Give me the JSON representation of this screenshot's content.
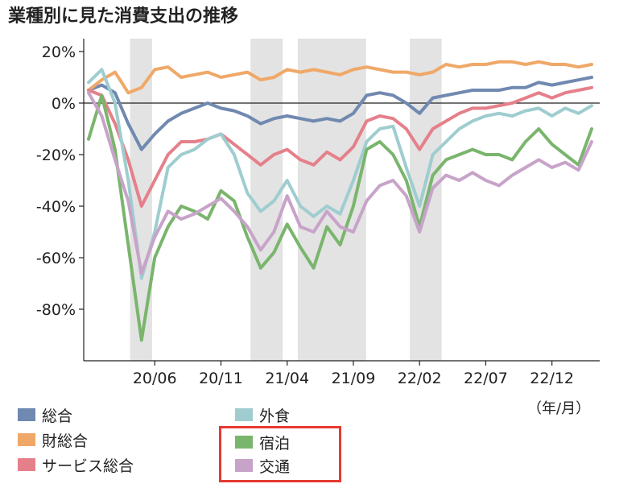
{
  "title": "業種別に見た消費支出の推移",
  "unit_label": "（年/月）",
  "chart_data": {
    "type": "line",
    "ylim": [
      -100,
      25
    ],
    "yticks": [
      20,
      0,
      -20,
      -40,
      -60,
      -80
    ],
    "ytick_labels": [
      "20%",
      "0%",
      "-20%",
      "-40%",
      "-60%",
      "-80%"
    ],
    "x_start": "2020-01",
    "x_end": "2023-03",
    "xtick_months": [
      "2020-06",
      "2020-11",
      "2021-04",
      "2021-09",
      "2022-02",
      "2022-07",
      "2022-12"
    ],
    "xtick_labels": [
      "20/06",
      "20/11",
      "21/04",
      "21/09",
      "22/02",
      "22/07",
      "22/12"
    ],
    "shaded_periods": [
      [
        "2020-04-05",
        "2020-05-25"
      ],
      [
        "2021-01-08",
        "2021-03-21"
      ],
      [
        "2021-04-25",
        "2021-09-30"
      ],
      [
        "2022-01-09",
        "2022-03-21"
      ]
    ],
    "grid": false,
    "legend_position": "bottom",
    "series": [
      {
        "name": "総合",
        "color": "#7089b0",
        "points": [
          [
            "2020-01",
            5
          ],
          [
            "2020-02",
            7
          ],
          [
            "2020-03",
            4
          ],
          [
            "2020-04",
            -8
          ],
          [
            "2020-05",
            -18
          ],
          [
            "2020-06",
            -12
          ],
          [
            "2020-07",
            -7
          ],
          [
            "2020-08",
            -4
          ],
          [
            "2020-09",
            -2
          ],
          [
            "2020-10",
            0
          ],
          [
            "2020-11",
            -2
          ],
          [
            "2020-12",
            -3
          ],
          [
            "2021-01",
            -5
          ],
          [
            "2021-02",
            -8
          ],
          [
            "2021-03",
            -6
          ],
          [
            "2021-04",
            -5
          ],
          [
            "2021-05",
            -6
          ],
          [
            "2021-06",
            -7
          ],
          [
            "2021-07",
            -6
          ],
          [
            "2021-08",
            -7
          ],
          [
            "2021-09",
            -4
          ],
          [
            "2021-10",
            3
          ],
          [
            "2021-11",
            4
          ],
          [
            "2021-12",
            3
          ],
          [
            "2022-01",
            0
          ],
          [
            "2022-02",
            -4
          ],
          [
            "2022-03",
            2
          ],
          [
            "2022-04",
            3
          ],
          [
            "2022-05",
            4
          ],
          [
            "2022-06",
            5
          ],
          [
            "2022-07",
            5
          ],
          [
            "2022-08",
            5
          ],
          [
            "2022-09",
            6
          ],
          [
            "2022-10",
            6
          ],
          [
            "2022-11",
            8
          ],
          [
            "2022-12",
            7
          ],
          [
            "2023-01",
            8
          ],
          [
            "2023-02",
            9
          ],
          [
            "2023-03",
            10
          ]
        ]
      },
      {
        "name": "財総合",
        "color": "#f0a868",
        "points": [
          [
            "2020-01",
            5
          ],
          [
            "2020-02",
            9
          ],
          [
            "2020-03",
            12
          ],
          [
            "2020-04",
            4
          ],
          [
            "2020-05",
            6
          ],
          [
            "2020-06",
            13
          ],
          [
            "2020-07",
            14
          ],
          [
            "2020-08",
            10
          ],
          [
            "2020-09",
            11
          ],
          [
            "2020-10",
            12
          ],
          [
            "2020-11",
            10
          ],
          [
            "2020-12",
            11
          ],
          [
            "2021-01",
            12
          ],
          [
            "2021-02",
            9
          ],
          [
            "2021-03",
            10
          ],
          [
            "2021-04",
            13
          ],
          [
            "2021-05",
            12
          ],
          [
            "2021-06",
            13
          ],
          [
            "2021-07",
            12
          ],
          [
            "2021-08",
            11
          ],
          [
            "2021-09",
            13
          ],
          [
            "2021-10",
            14
          ],
          [
            "2021-11",
            13
          ],
          [
            "2021-12",
            12
          ],
          [
            "2022-01",
            12
          ],
          [
            "2022-02",
            11
          ],
          [
            "2022-03",
            12
          ],
          [
            "2022-04",
            15
          ],
          [
            "2022-05",
            14
          ],
          [
            "2022-06",
            15
          ],
          [
            "2022-07",
            15
          ],
          [
            "2022-08",
            16
          ],
          [
            "2022-09",
            16
          ],
          [
            "2022-10",
            15
          ],
          [
            "2022-11",
            16
          ],
          [
            "2022-12",
            15
          ],
          [
            "2023-01",
            15
          ],
          [
            "2023-02",
            14
          ],
          [
            "2023-03",
            15
          ]
        ]
      },
      {
        "name": "サービス総合",
        "color": "#e5808a",
        "points": [
          [
            "2020-01",
            5
          ],
          [
            "2020-02",
            3
          ],
          [
            "2020-03",
            -8
          ],
          [
            "2020-04",
            -22
          ],
          [
            "2020-05",
            -40
          ],
          [
            "2020-06",
            -30
          ],
          [
            "2020-07",
            -20
          ],
          [
            "2020-08",
            -15
          ],
          [
            "2020-09",
            -15
          ],
          [
            "2020-10",
            -14
          ],
          [
            "2020-11",
            -12
          ],
          [
            "2020-12",
            -16
          ],
          [
            "2021-01",
            -20
          ],
          [
            "2021-02",
            -24
          ],
          [
            "2021-03",
            -20
          ],
          [
            "2021-04",
            -18
          ],
          [
            "2021-05",
            -22
          ],
          [
            "2021-06",
            -24
          ],
          [
            "2021-07",
            -19
          ],
          [
            "2021-08",
            -22
          ],
          [
            "2021-09",
            -17
          ],
          [
            "2021-10",
            -7
          ],
          [
            "2021-11",
            -5
          ],
          [
            "2021-12",
            -6
          ],
          [
            "2022-01",
            -10
          ],
          [
            "2022-02",
            -18
          ],
          [
            "2022-03",
            -10
          ],
          [
            "2022-04",
            -7
          ],
          [
            "2022-05",
            -4
          ],
          [
            "2022-06",
            -2
          ],
          [
            "2022-07",
            -2
          ],
          [
            "2022-08",
            -1
          ],
          [
            "2022-09",
            0
          ],
          [
            "2022-10",
            2
          ],
          [
            "2022-11",
            4
          ],
          [
            "2022-12",
            2
          ],
          [
            "2023-01",
            4
          ],
          [
            "2023-02",
            5
          ],
          [
            "2023-03",
            6
          ]
        ]
      },
      {
        "name": "外食",
        "color": "#9fcdcf",
        "points": [
          [
            "2020-01",
            8
          ],
          [
            "2020-02",
            13
          ],
          [
            "2020-03",
            0
          ],
          [
            "2020-04",
            -30
          ],
          [
            "2020-05",
            -68
          ],
          [
            "2020-06",
            -50
          ],
          [
            "2020-07",
            -25
          ],
          [
            "2020-08",
            -20
          ],
          [
            "2020-09",
            -18
          ],
          [
            "2020-10",
            -14
          ],
          [
            "2020-11",
            -12
          ],
          [
            "2020-12",
            -20
          ],
          [
            "2021-01",
            -35
          ],
          [
            "2021-02",
            -42
          ],
          [
            "2021-03",
            -38
          ],
          [
            "2021-04",
            -30
          ],
          [
            "2021-05",
            -40
          ],
          [
            "2021-06",
            -44
          ],
          [
            "2021-07",
            -40
          ],
          [
            "2021-08",
            -43
          ],
          [
            "2021-09",
            -30
          ],
          [
            "2021-10",
            -15
          ],
          [
            "2021-11",
            -10
          ],
          [
            "2021-12",
            -9
          ],
          [
            "2022-01",
            -25
          ],
          [
            "2022-02",
            -40
          ],
          [
            "2022-03",
            -20
          ],
          [
            "2022-04",
            -15
          ],
          [
            "2022-05",
            -10
          ],
          [
            "2022-06",
            -7
          ],
          [
            "2022-07",
            -5
          ],
          [
            "2022-08",
            -4
          ],
          [
            "2022-09",
            -5
          ],
          [
            "2022-10",
            -3
          ],
          [
            "2022-11",
            -2
          ],
          [
            "2022-12",
            -5
          ],
          [
            "2023-01",
            -2
          ],
          [
            "2023-02",
            -4
          ],
          [
            "2023-03",
            -1
          ]
        ]
      },
      {
        "name": "宿泊",
        "color": "#7ab56d",
        "points": [
          [
            "2020-01",
            -14
          ],
          [
            "2020-02",
            3
          ],
          [
            "2020-03",
            -18
          ],
          [
            "2020-04",
            -55
          ],
          [
            "2020-05",
            -92
          ],
          [
            "2020-06",
            -60
          ],
          [
            "2020-07",
            -48
          ],
          [
            "2020-08",
            -40
          ],
          [
            "2020-09",
            -42
          ],
          [
            "2020-10",
            -45
          ],
          [
            "2020-11",
            -34
          ],
          [
            "2020-12",
            -38
          ],
          [
            "2021-01",
            -52
          ],
          [
            "2021-02",
            -64
          ],
          [
            "2021-03",
            -58
          ],
          [
            "2021-04",
            -47
          ],
          [
            "2021-05",
            -56
          ],
          [
            "2021-06",
            -64
          ],
          [
            "2021-07",
            -48
          ],
          [
            "2021-08",
            -55
          ],
          [
            "2021-09",
            -40
          ],
          [
            "2021-10",
            -18
          ],
          [
            "2021-11",
            -15
          ],
          [
            "2021-12",
            -20
          ],
          [
            "2022-01",
            -30
          ],
          [
            "2022-02",
            -48
          ],
          [
            "2022-03",
            -28
          ],
          [
            "2022-04",
            -22
          ],
          [
            "2022-05",
            -20
          ],
          [
            "2022-06",
            -18
          ],
          [
            "2022-07",
            -20
          ],
          [
            "2022-08",
            -20
          ],
          [
            "2022-09",
            -22
          ],
          [
            "2022-10",
            -15
          ],
          [
            "2022-11",
            -10
          ],
          [
            "2022-12",
            -16
          ],
          [
            "2023-01",
            -20
          ],
          [
            "2023-02",
            -24
          ],
          [
            "2023-03",
            -10
          ]
        ]
      },
      {
        "name": "交通",
        "color": "#c8a3c9",
        "points": [
          [
            "2020-01",
            4
          ],
          [
            "2020-02",
            -5
          ],
          [
            "2020-03",
            -22
          ],
          [
            "2020-04",
            -38
          ],
          [
            "2020-05",
            -66
          ],
          [
            "2020-06",
            -52
          ],
          [
            "2020-07",
            -42
          ],
          [
            "2020-08",
            -45
          ],
          [
            "2020-09",
            -43
          ],
          [
            "2020-10",
            -40
          ],
          [
            "2020-11",
            -37
          ],
          [
            "2020-12",
            -42
          ],
          [
            "2021-01",
            -48
          ],
          [
            "2021-02",
            -57
          ],
          [
            "2021-03",
            -50
          ],
          [
            "2021-04",
            -36
          ],
          [
            "2021-05",
            -48
          ],
          [
            "2021-06",
            -50
          ],
          [
            "2021-07",
            -42
          ],
          [
            "2021-08",
            -48
          ],
          [
            "2021-09",
            -50
          ],
          [
            "2021-10",
            -38
          ],
          [
            "2021-11",
            -32
          ],
          [
            "2021-12",
            -30
          ],
          [
            "2022-01",
            -36
          ],
          [
            "2022-02",
            -50
          ],
          [
            "2022-03",
            -33
          ],
          [
            "2022-04",
            -28
          ],
          [
            "2022-05",
            -30
          ],
          [
            "2022-06",
            -27
          ],
          [
            "2022-07",
            -30
          ],
          [
            "2022-08",
            -32
          ],
          [
            "2022-09",
            -28
          ],
          [
            "2022-10",
            -25
          ],
          [
            "2022-11",
            -22
          ],
          [
            "2022-12",
            -25
          ],
          [
            "2023-01",
            -23
          ],
          [
            "2023-02",
            -26
          ],
          [
            "2023-03",
            -15
          ]
        ]
      }
    ]
  }
}
